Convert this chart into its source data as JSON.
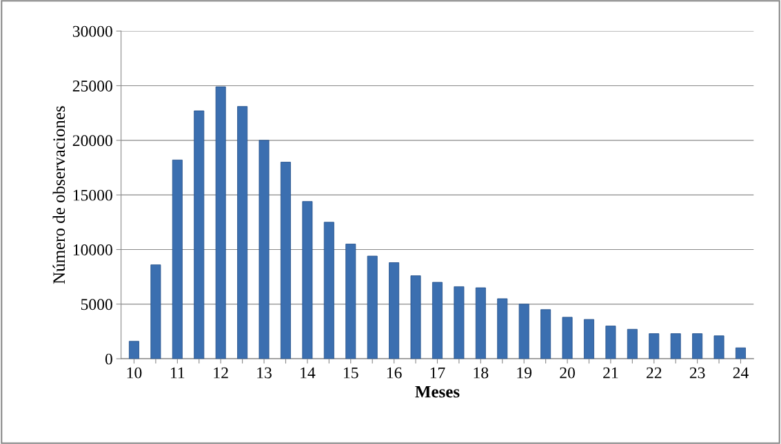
{
  "chart_data": {
    "type": "bar",
    "xlabel": "Meses",
    "ylabel": "Número de observaciones",
    "categories": [
      "10",
      null,
      "11",
      null,
      "12",
      null,
      "13",
      null,
      "14",
      null,
      "15",
      null,
      "16",
      null,
      "17",
      null,
      "18",
      null,
      "19",
      null,
      "20",
      null,
      "21",
      null,
      "22",
      null,
      "23",
      null,
      "24"
    ],
    "values": [
      1600,
      8600,
      18200,
      22700,
      24900,
      23100,
      20000,
      18000,
      14400,
      12500,
      10500,
      9400,
      8800,
      7600,
      7000,
      6600,
      6500,
      5500,
      5000,
      4500,
      3800,
      3600,
      3000,
      2700,
      2300,
      2300,
      2300,
      2100,
      1000
    ],
    "color": "#3b6fb0",
    "ylim": [
      0,
      30000
    ],
    "yticks": [
      0,
      5000,
      10000,
      15000,
      20000,
      25000,
      30000
    ],
    "grid": "y",
    "legend": false
  }
}
